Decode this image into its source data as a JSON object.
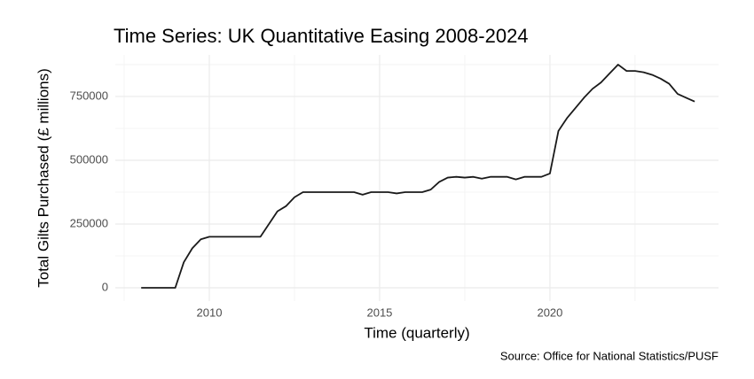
{
  "chart_data": {
    "type": "line",
    "title": "Time Series: UK Quantitative Easing 2008-2024",
    "x_label": "Time (quarterly)",
    "y_label": "Total Gilts Purchased (£ millions)",
    "caption": "Source: Office for National Statistics/PUSF",
    "x": [
      2008,
      2008.25,
      2008.5,
      2008.75,
      2009,
      2009.25,
      2009.5,
      2009.75,
      2010,
      2010.25,
      2010.5,
      2010.75,
      2011,
      2011.25,
      2011.5,
      2011.75,
      2012,
      2012.25,
      2012.5,
      2012.75,
      2013,
      2013.25,
      2013.5,
      2013.75,
      2014,
      2014.25,
      2014.5,
      2014.75,
      2015,
      2015.25,
      2015.5,
      2015.75,
      2016,
      2016.25,
      2016.5,
      2016.75,
      2017,
      2017.25,
      2017.5,
      2017.75,
      2018,
      2018.25,
      2018.5,
      2018.75,
      2019,
      2019.25,
      2019.5,
      2019.75,
      2020,
      2020.25,
      2020.5,
      2020.75,
      2021,
      2021.25,
      2021.5,
      2021.75,
      2022,
      2022.25,
      2022.5,
      2022.75,
      2023,
      2023.25,
      2023.5,
      2023.75,
      2024,
      2024.25
    ],
    "values": [
      0,
      0,
      0,
      0,
      0,
      100000,
      155000,
      190000,
      200000,
      200000,
      200000,
      200000,
      200000,
      200000,
      200000,
      250000,
      300000,
      320000,
      355000,
      375000,
      375000,
      375000,
      375000,
      375000,
      375000,
      375000,
      365000,
      375000,
      375000,
      375000,
      370000,
      375000,
      375000,
      375000,
      385000,
      415000,
      432000,
      435000,
      432000,
      435000,
      428000,
      435000,
      435000,
      435000,
      425000,
      435000,
      435000,
      435000,
      448000,
      615000,
      665000,
      705000,
      745000,
      780000,
      805000,
      840000,
      875000,
      850000,
      850000,
      845000,
      835000,
      820000,
      800000,
      760000,
      745000,
      730000
    ],
    "color": "#1a1a1a",
    "xlim": [
      2007.24,
      2024.95
    ],
    "xticks": [
      2010,
      2015,
      2020
    ],
    "ylim": [
      -52000,
      913000
    ],
    "yticks": [
      0,
      250000,
      500000,
      750000
    ],
    "grid": true
  }
}
